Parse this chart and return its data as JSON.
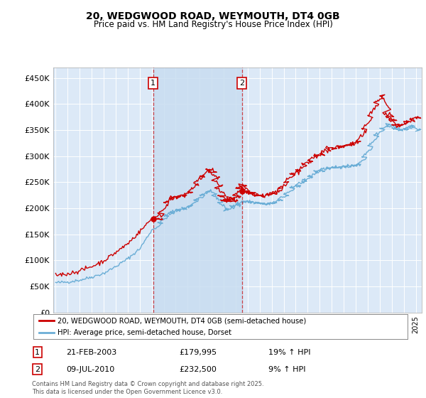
{
  "title": "20, WEDGWOOD ROAD, WEYMOUTH, DT4 0GB",
  "subtitle": "Price paid vs. HM Land Registry's House Price Index (HPI)",
  "background_color": "#ffffff",
  "plot_bg_color": "#dce9f7",
  "shade_color": "#c8ddf0",
  "grid_color": "#ffffff",
  "ylim": [
    0,
    470000
  ],
  "yticks": [
    0,
    50000,
    100000,
    150000,
    200000,
    250000,
    300000,
    350000,
    400000,
    450000
  ],
  "ytick_labels": [
    "£0",
    "£50K",
    "£100K",
    "£150K",
    "£200K",
    "£250K",
    "£300K",
    "£350K",
    "£400K",
    "£450K"
  ],
  "sale1_date": "21-FEB-2003",
  "sale1_price": 179995,
  "sale1_hpi": "19% ↑ HPI",
  "sale1_x": 2003.12,
  "sale2_date": "09-JUL-2010",
  "sale2_price": 232500,
  "sale2_hpi": "9% ↑ HPI",
  "sale2_x": 2010.52,
  "legend_line1": "20, WEDGWOOD ROAD, WEYMOUTH, DT4 0GB (semi-detached house)",
  "legend_line2": "HPI: Average price, semi-detached house, Dorset",
  "footer": "Contains HM Land Registry data © Crown copyright and database right 2025.\nThis data is licensed under the Open Government Licence v3.0.",
  "red_color": "#cc0000",
  "blue_color": "#6baed6",
  "vline_color": "#cc0000",
  "xlim_left": 1994.8,
  "xlim_right": 2025.5
}
